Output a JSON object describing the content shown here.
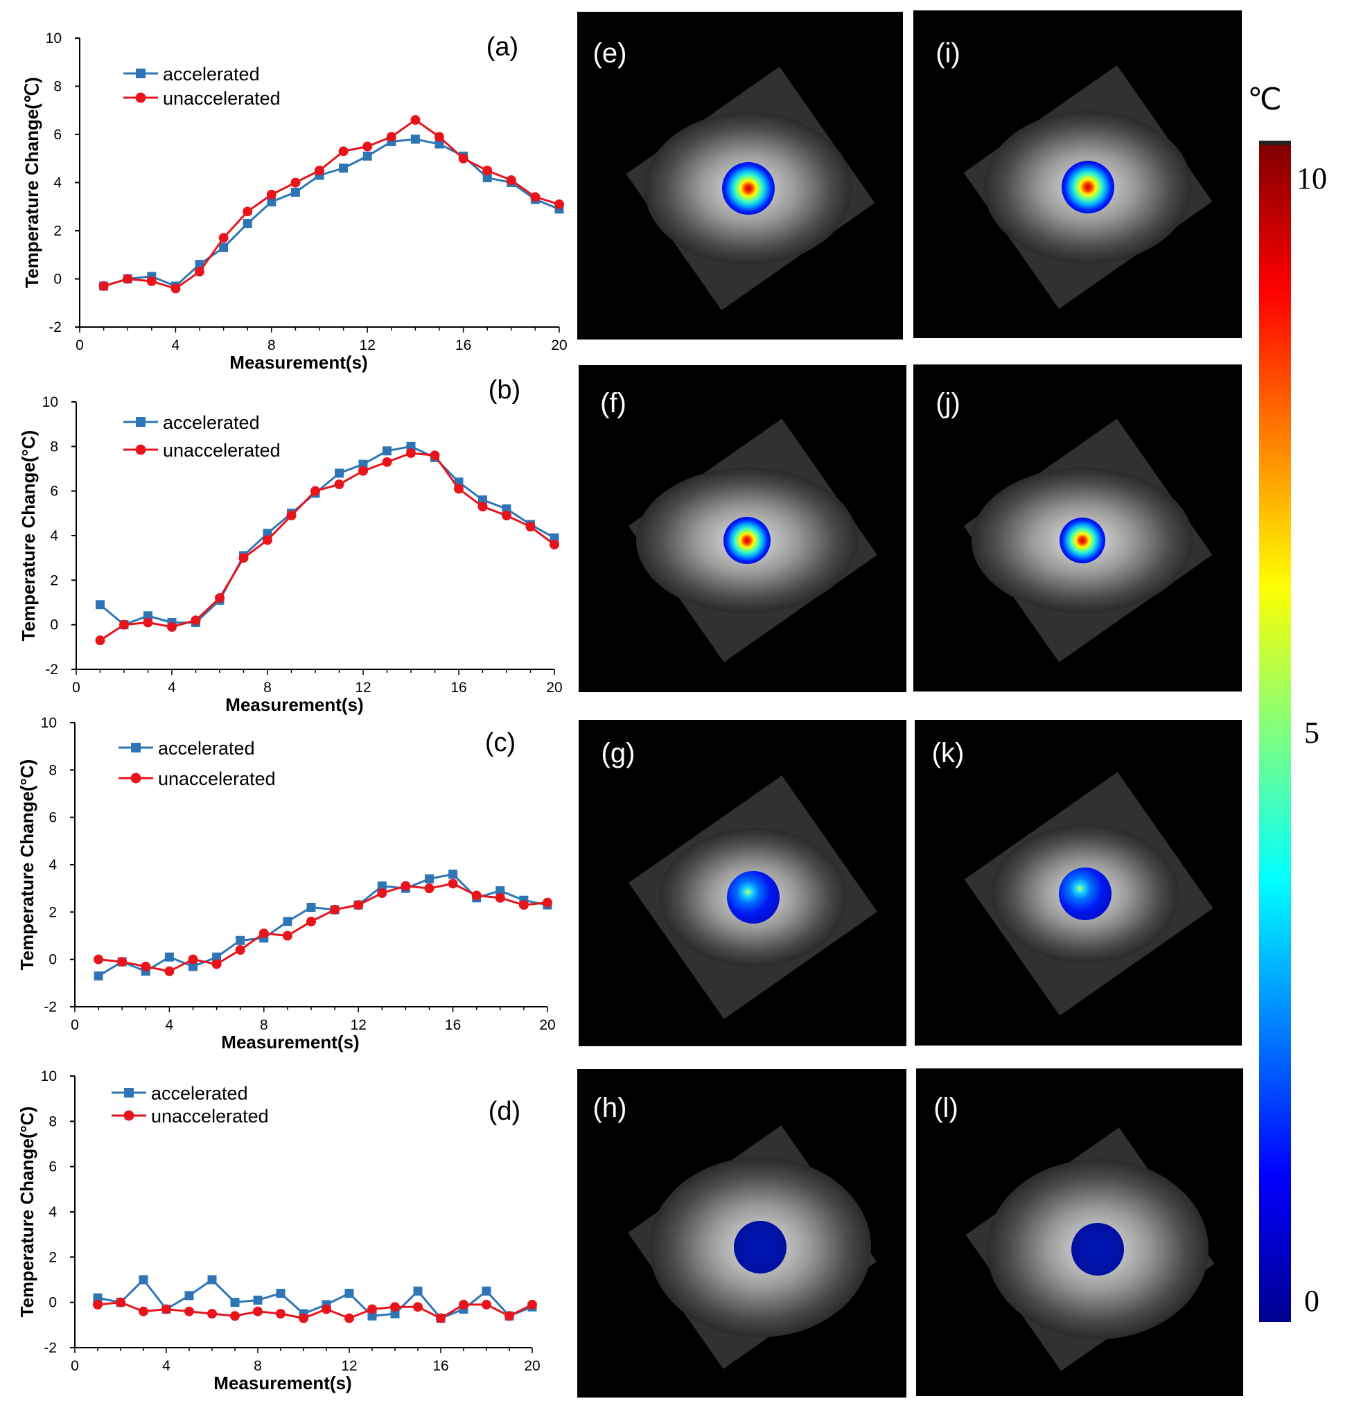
{
  "colors": {
    "accelerated": "#2E75B6",
    "unaccelerated": "#E8141C",
    "axis": "#000000",
    "image_bg": "#000000"
  },
  "chart_data": [
    {
      "type": "line",
      "panel_label": "(a)",
      "xlabel": "Measurement(s)",
      "ylabel": "Temperature Change(℃)",
      "xlim": [
        0,
        20
      ],
      "ylim": [
        -2,
        10
      ],
      "xticks": [
        "0",
        "4",
        "8",
        "12",
        "16",
        "20"
      ],
      "yticks": [
        "-2",
        "0",
        "2",
        "4",
        "6",
        "8",
        "10"
      ],
      "legend": [
        "accelerated",
        "unaccelerated"
      ],
      "x": [
        1,
        2,
        3,
        4,
        5,
        6,
        7,
        8,
        9,
        10,
        11,
        12,
        13,
        14,
        15,
        16,
        17,
        18,
        19,
        20
      ],
      "series": [
        {
          "name": "accelerated",
          "values": [
            -0.3,
            0.0,
            0.1,
            -0.3,
            0.6,
            1.3,
            2.3,
            3.2,
            3.6,
            4.3,
            4.6,
            5.1,
            5.7,
            5.8,
            5.6,
            5.1,
            4.2,
            4.0,
            3.3,
            2.9
          ]
        },
        {
          "name": "unaccelerated",
          "values": [
            -0.3,
            0.0,
            -0.1,
            -0.4,
            0.3,
            1.7,
            2.8,
            3.5,
            4.0,
            4.5,
            5.3,
            5.5,
            5.9,
            6.6,
            5.9,
            5.0,
            4.5,
            4.1,
            3.4,
            3.1
          ]
        }
      ]
    },
    {
      "type": "line",
      "panel_label": "(b)",
      "xlabel": "Measurement(s)",
      "ylabel": "Temperature Change(°C)",
      "xlim": [
        0,
        20
      ],
      "ylim": [
        -2,
        10
      ],
      "xticks": [
        "0",
        "4",
        "8",
        "12",
        "16",
        "20"
      ],
      "yticks": [
        "-2",
        "0",
        "2",
        "4",
        "6",
        "8",
        "10"
      ],
      "legend": [
        "accelerated",
        "unaccelerated"
      ],
      "x": [
        1,
        2,
        3,
        4,
        5,
        6,
        7,
        8,
        9,
        10,
        11,
        12,
        13,
        14,
        15,
        16,
        17,
        18,
        19,
        20
      ],
      "series": [
        {
          "name": "accelerated",
          "values": [
            0.9,
            0.0,
            0.4,
            0.1,
            0.1,
            1.1,
            3.1,
            4.1,
            5.0,
            5.9,
            6.8,
            7.2,
            7.8,
            8.0,
            7.5,
            6.4,
            5.6,
            5.2,
            4.5,
            3.9
          ]
        },
        {
          "name": "unaccelerated",
          "values": [
            -0.7,
            0.0,
            0.1,
            -0.1,
            0.2,
            1.2,
            3.0,
            3.8,
            4.9,
            6.0,
            6.3,
            6.9,
            7.3,
            7.7,
            7.6,
            6.1,
            5.3,
            4.9,
            4.4,
            3.6
          ]
        }
      ]
    },
    {
      "type": "line",
      "panel_label": "(c)",
      "xlabel": "Measurement(s)",
      "ylabel": "Temperature Change(°C)",
      "xlim": [
        0,
        20
      ],
      "ylim": [
        -2,
        10
      ],
      "xticks": [
        "0",
        "4",
        "8",
        "12",
        "16",
        "20"
      ],
      "yticks": [
        "-2",
        "0",
        "2",
        "4",
        "6",
        "8",
        "10"
      ],
      "legend": [
        "accelerated",
        "unaccelerated"
      ],
      "x": [
        1,
        2,
        3,
        4,
        5,
        6,
        7,
        8,
        9,
        10,
        11,
        12,
        13,
        14,
        15,
        16,
        17,
        18,
        19,
        20
      ],
      "series": [
        {
          "name": "accelerated",
          "values": [
            -0.7,
            -0.1,
            -0.5,
            0.1,
            -0.3,
            0.1,
            0.8,
            0.9,
            1.6,
            2.2,
            2.1,
            2.3,
            3.1,
            3.0,
            3.4,
            3.6,
            2.6,
            2.9,
            2.5,
            2.3
          ]
        },
        {
          "name": "unaccelerated",
          "values": [
            0.0,
            -0.1,
            -0.3,
            -0.5,
            0.0,
            -0.2,
            0.4,
            1.1,
            1.0,
            1.6,
            2.1,
            2.3,
            2.8,
            3.1,
            3.0,
            3.2,
            2.7,
            2.6,
            2.3,
            2.4
          ]
        }
      ]
    },
    {
      "type": "line",
      "panel_label": "(d)",
      "xlabel": "Measurement(s)",
      "ylabel": "Temperature Change(°C)",
      "xlim": [
        0,
        20
      ],
      "ylim": [
        -2,
        10
      ],
      "xticks": [
        "0",
        "4",
        "8",
        "12",
        "16",
        "20"
      ],
      "yticks": [
        "-2",
        "0",
        "2",
        "4",
        "6",
        "8",
        "10"
      ],
      "legend": [
        "accelerated",
        "unaccelerated"
      ],
      "x": [
        1,
        2,
        3,
        4,
        5,
        6,
        7,
        8,
        9,
        10,
        11,
        12,
        13,
        14,
        15,
        16,
        17,
        18,
        19,
        20
      ],
      "series": [
        {
          "name": "accelerated",
          "values": [
            0.2,
            0.0,
            1.0,
            -0.3,
            0.3,
            1.0,
            0.0,
            0.1,
            0.4,
            -0.5,
            -0.1,
            0.4,
            -0.6,
            -0.5,
            0.5,
            -0.7,
            -0.3,
            0.5,
            -0.6,
            -0.2
          ]
        },
        {
          "name": "unaccelerated",
          "values": [
            -0.1,
            0.0,
            -0.4,
            -0.3,
            -0.4,
            -0.5,
            -0.6,
            -0.4,
            -0.5,
            -0.7,
            -0.3,
            -0.7,
            -0.3,
            -0.2,
            -0.2,
            -0.7,
            -0.1,
            -0.1,
            -0.6,
            -0.1
          ]
        }
      ]
    }
  ],
  "images": [
    {
      "label": "(e)",
      "hotspot": "high"
    },
    {
      "label": "(f)",
      "hotspot": "high"
    },
    {
      "label": "(g)",
      "hotspot": "low"
    },
    {
      "label": "(h)",
      "hotspot": "none"
    },
    {
      "label": "(i)",
      "hotspot": "high"
    },
    {
      "label": "(j)",
      "hotspot": "high"
    },
    {
      "label": "(k)",
      "hotspot": "low"
    },
    {
      "label": "(l)",
      "hotspot": "none"
    }
  ],
  "colorbar": {
    "unit": "℃",
    "labels": [
      "10",
      "5",
      "0"
    ],
    "range": [
      0,
      10
    ]
  }
}
